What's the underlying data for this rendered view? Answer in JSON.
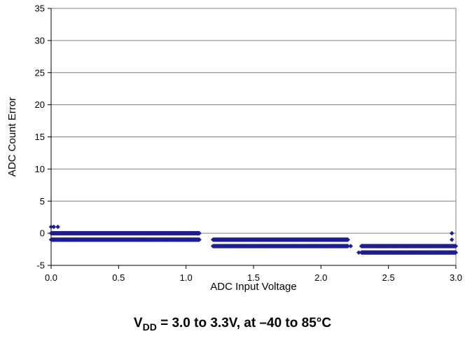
{
  "chart_data": {
    "type": "scatter",
    "xlabel": "ADC Input Voltage",
    "ylabel": "ADC Count Error",
    "xlim": [
      0.0,
      3.0
    ],
    "ylim": [
      -5,
      35
    ],
    "x_ticks": [
      "0.0",
      "0.5",
      "1.0",
      "1.5",
      "2.0",
      "2.5",
      "3.0"
    ],
    "y_ticks": [
      "-5",
      "0",
      "5",
      "10",
      "15",
      "20",
      "25",
      "30",
      "35"
    ],
    "grid": "horizontal",
    "marker_color": "#1f1f8f",
    "series": [
      {
        "segments": [
          {
            "x_start": 0.0,
            "x_end": 1.1,
            "y_values": [
              0,
              -1
            ]
          },
          {
            "x_start": 1.2,
            "x_end": 2.2,
            "y_values": [
              -1,
              -2
            ]
          },
          {
            "x_start": 2.3,
            "x_end": 3.0,
            "y_values": [
              -2,
              -3
            ]
          }
        ],
        "outliers": [
          {
            "x": 0.0,
            "y": 1
          },
          {
            "x": 0.02,
            "y": 1
          },
          {
            "x": 0.05,
            "y": 1
          },
          {
            "x": 0.12,
            "y": -1
          },
          {
            "x": 1.21,
            "y": -2
          },
          {
            "x": 2.22,
            "y": -2
          },
          {
            "x": 2.28,
            "y": -3
          },
          {
            "x": 2.33,
            "y": -3
          },
          {
            "x": 2.97,
            "y": 0
          },
          {
            "x": 2.97,
            "y": -1
          },
          {
            "x": 2.97,
            "y": -2
          },
          {
            "x": 2.97,
            "y": -3
          }
        ]
      }
    ]
  },
  "caption": {
    "main": "V",
    "sub": "DD",
    "rest": " = 3.0 to 3.3V, at –40 to 85°C"
  }
}
